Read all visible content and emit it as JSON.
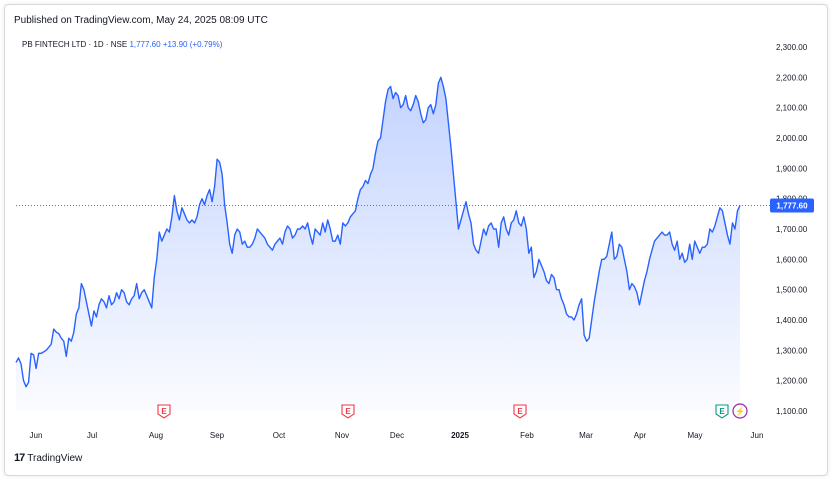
{
  "header": {
    "published": "Published on TradingView.com, May 24, 2025 08:09 UTC"
  },
  "legend": {
    "symbol": "PB FINTECH LTD · 1D · NSE",
    "price": "1,777.60",
    "change": "+13.90 (+0.79%)"
  },
  "footer": {
    "logo": "17",
    "brand": "TradingView"
  },
  "colors": {
    "line": "#2962ff",
    "earnings_badge": "#f23645",
    "earnings_badge_future": "#089981",
    "dividend_badge": "#9c27b0",
    "price_tag_bg": "#2962ff"
  },
  "chart_data": {
    "type": "area",
    "title": "",
    "xlabel": "",
    "ylabel": "",
    "ylim": [
      1100,
      2300
    ],
    "y_ticks": [
      "2,300.00",
      "2,200.00",
      "2,100.00",
      "2,000.00",
      "1,900.00",
      "1,800.00",
      "1,700.00",
      "1,600.00",
      "1,500.00",
      "1,400.00",
      "1,300.00",
      "1,200.00",
      "1,100.00"
    ],
    "x_ticks": [
      "Jun",
      "Jul",
      "Aug",
      "Sep",
      "Oct",
      "Nov",
      "Dec",
      "2025",
      "Feb",
      "Mar",
      "Apr",
      "May",
      "Jun"
    ],
    "last_price_label": "1,777.60",
    "last_price": 1777.6,
    "badges": [
      {
        "label": "E",
        "index": 63
      },
      {
        "label": "E",
        "index": 135
      },
      {
        "label": "E",
        "index": 207
      },
      {
        "label": "E",
        "index": 285
      },
      {
        "label": "⚡",
        "index": 295
      }
    ],
    "series": [
      {
        "values": [
          1260,
          1275,
          1255,
          1200,
          1180,
          1195,
          1290,
          1285,
          1240,
          1290,
          1290,
          1295,
          1300,
          1310,
          1320,
          1370,
          1360,
          1355,
          1340,
          1330,
          1280,
          1340,
          1330,
          1360,
          1420,
          1440,
          1520,
          1500,
          1460,
          1420,
          1380,
          1430,
          1410,
          1450,
          1470,
          1460,
          1440,
          1480,
          1450,
          1460,
          1490,
          1470,
          1500,
          1490,
          1460,
          1450,
          1470,
          1480,
          1520,
          1470,
          1490,
          1500,
          1480,
          1460,
          1440,
          1540,
          1600,
          1690,
          1660,
          1680,
          1700,
          1690,
          1740,
          1810,
          1760,
          1730,
          1770,
          1750,
          1730,
          1720,
          1730,
          1720,
          1740,
          1780,
          1800,
          1780,
          1810,
          1830,
          1790,
          1840,
          1930,
          1920,
          1880,
          1780,
          1720,
          1650,
          1620,
          1680,
          1700,
          1690,
          1650,
          1660,
          1640,
          1640,
          1650,
          1670,
          1700,
          1690,
          1680,
          1670,
          1650,
          1640,
          1630,
          1650,
          1660,
          1670,
          1650,
          1690,
          1710,
          1700,
          1670,
          1680,
          1700,
          1700,
          1710,
          1700,
          1720,
          1680,
          1650,
          1700,
          1690,
          1680,
          1720,
          1690,
          1730,
          1700,
          1660,
          1660,
          1680,
          1650,
          1720,
          1710,
          1720,
          1740,
          1750,
          1760,
          1800,
          1830,
          1840,
          1860,
          1850,
          1880,
          1900,
          1950,
          1990,
          2000,
          2060,
          2120,
          2160,
          2170,
          2130,
          2150,
          2140,
          2100,
          2110,
          2140,
          2100,
          2090,
          2110,
          2140,
          2120,
          2080,
          2050,
          2060,
          2100,
          2110,
          2080,
          2110,
          2180,
          2200,
          2170,
          2130,
          2050,
          1970,
          1880,
          1790,
          1700,
          1730,
          1760,
          1790,
          1750,
          1720,
          1650,
          1630,
          1620,
          1660,
          1700,
          1680,
          1710,
          1720,
          1700,
          1700,
          1640,
          1720,
          1740,
          1700,
          1680,
          1720,
          1730,
          1760,
          1720,
          1710,
          1740,
          1700,
          1620,
          1640,
          1540,
          1560,
          1600,
          1580,
          1560,
          1530,
          1520,
          1550,
          1540,
          1500,
          1500,
          1470,
          1450,
          1420,
          1410,
          1410,
          1400,
          1420,
          1450,
          1470,
          1350,
          1330,
          1340,
          1400,
          1460,
          1510,
          1560,
          1600,
          1600,
          1610,
          1650,
          1690,
          1600,
          1610,
          1650,
          1640,
          1600,
          1560,
          1500,
          1520,
          1510,
          1490,
          1450,
          1490,
          1530,
          1560,
          1600,
          1630,
          1660,
          1670,
          1680,
          1690,
          1680,
          1680,
          1690,
          1650,
          1630,
          1660,
          1600,
          1620,
          1590,
          1600,
          1650,
          1600,
          1660,
          1640,
          1620,
          1640,
          1640,
          1650,
          1700,
          1690,
          1710,
          1740,
          1770,
          1760,
          1720,
          1680,
          1650,
          1720,
          1700,
          1760,
          1777.6
        ]
      }
    ]
  }
}
